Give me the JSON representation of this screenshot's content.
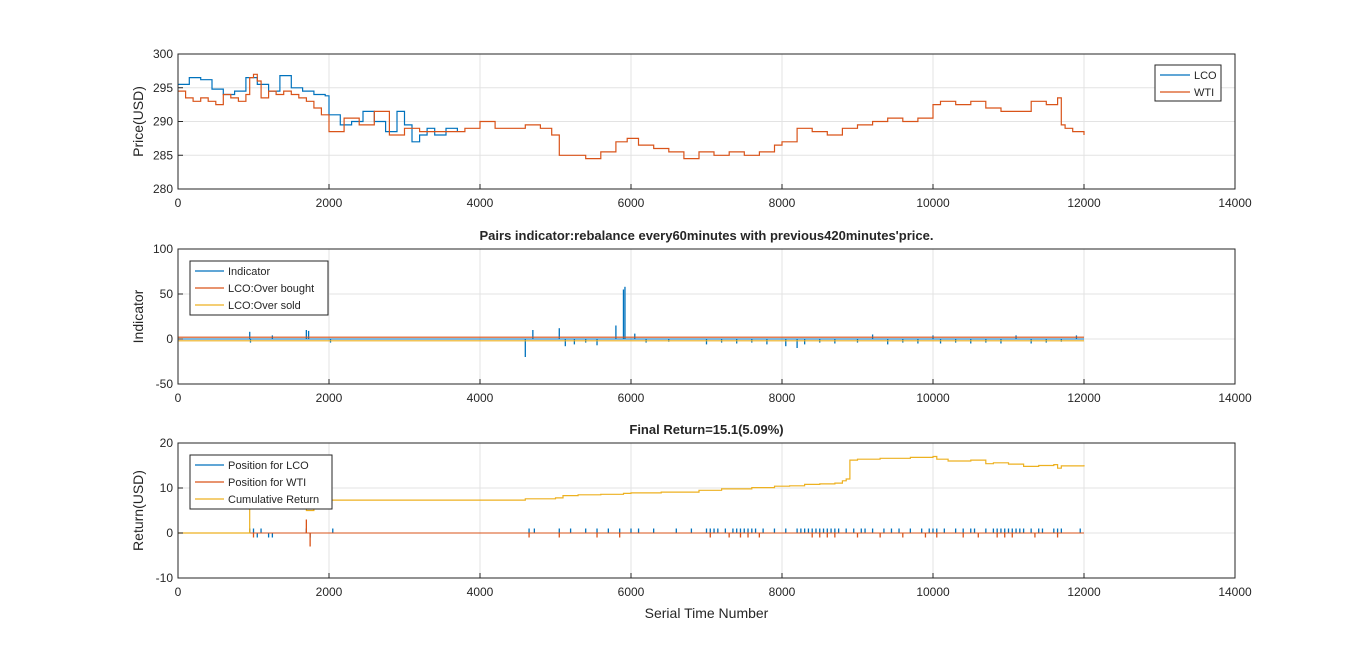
{
  "colors": {
    "c1": "#0072BD",
    "c2": "#D95319",
    "c3": "#EDB120",
    "grid": "#e3e3e3",
    "axis": "#262626"
  },
  "chart_data": [
    {
      "type": "line",
      "title": "",
      "ylabel": "Price(USD)",
      "xlabel": "",
      "xlim": [
        0,
        14000
      ],
      "ylim": [
        280,
        300
      ],
      "xticks": [
        "0",
        "2000",
        "4000",
        "6000",
        "8000",
        "10000",
        "12000",
        "14000"
      ],
      "yticks": [
        "280",
        "285",
        "290",
        "295",
        "300"
      ],
      "grid": true,
      "legend_position": "top-right",
      "series": [
        {
          "name": "LCO",
          "color": "#0072BD",
          "x": [
            0,
            150,
            300,
            450,
            600,
            750,
            900,
            1050,
            1200,
            1350,
            1500,
            1650,
            1800,
            1950,
            2000,
            2150,
            2300,
            2450,
            2600,
            2750,
            2900,
            3000,
            3100,
            3200,
            3300,
            3400,
            3550,
            3700
          ],
          "y": [
            295.5,
            296.5,
            296.2,
            294.8,
            294.0,
            294.5,
            296.5,
            295.5,
            294.5,
            296.8,
            295.0,
            294.5,
            294.0,
            293.8,
            291.0,
            289.5,
            290.0,
            291.5,
            290.0,
            288.5,
            291.5,
            289.5,
            287.0,
            288.0,
            289.0,
            288.0,
            289.0,
            288.5
          ]
        },
        {
          "name": "WTI",
          "color": "#D95319",
          "x": [
            0,
            100,
            200,
            300,
            400,
            500,
            600,
            700,
            800,
            900,
            950,
            1000,
            1050,
            1100,
            1200,
            1300,
            1400,
            1500,
            1600,
            1700,
            1800,
            1900,
            2000,
            2200,
            2400,
            2600,
            2800,
            3000,
            3200,
            3400,
            3600,
            3800,
            4000,
            4200,
            4400,
            4600,
            4800,
            4950,
            5050,
            5200,
            5400,
            5600,
            5800,
            5950,
            6100,
            6300,
            6500,
            6700,
            6900,
            7100,
            7300,
            7500,
            7700,
            7900,
            8000,
            8200,
            8400,
            8600,
            8800,
            9000,
            9200,
            9400,
            9600,
            9800,
            10000,
            10100,
            10300,
            10500,
            10700,
            10900,
            11100,
            11300,
            11500,
            11650,
            11700,
            11750,
            11850,
            12000
          ],
          "y": [
            294.5,
            293.5,
            293.0,
            293.5,
            293.0,
            292.5,
            294.0,
            293.5,
            293.0,
            294.0,
            296.5,
            297.0,
            296.0,
            293.5,
            294.5,
            294.0,
            294.5,
            294.0,
            293.5,
            293.0,
            292.0,
            291.0,
            288.5,
            290.5,
            289.5,
            291.5,
            288.0,
            289.0,
            288.5,
            288.5,
            288.5,
            289.0,
            290.0,
            289.0,
            289.0,
            289.5,
            289.0,
            288.0,
            285.0,
            285.0,
            284.5,
            285.5,
            287.0,
            287.5,
            286.5,
            286.0,
            285.5,
            284.5,
            285.5,
            285.0,
            285.5,
            285.0,
            285.5,
            286.5,
            287.0,
            289.0,
            288.5,
            288.0,
            289.0,
            289.5,
            290.0,
            290.5,
            290.0,
            290.5,
            292.5,
            293.0,
            292.5,
            293.0,
            292.0,
            291.5,
            291.5,
            293.0,
            292.5,
            293.5,
            289.5,
            289.0,
            288.5,
            288.0
          ]
        }
      ]
    },
    {
      "type": "line",
      "title": "Pairs indicator:rebalance every60minutes with previous420minutes'price.",
      "ylabel": "Indicator",
      "xlabel": "",
      "xlim": [
        0,
        14000
      ],
      "ylim": [
        -50,
        100
      ],
      "xticks": [
        "0",
        "2000",
        "4000",
        "6000",
        "8000",
        "10000",
        "12000",
        "14000"
      ],
      "yticks": [
        "-50",
        "0",
        "50",
        "100"
      ],
      "grid": true,
      "legend_position": "top-left",
      "series": [
        {
          "name": "Indicator",
          "color": "#0072BD",
          "spikes": [
            [
              950,
              8
            ],
            [
              960,
              -4
            ],
            [
              1250,
              4
            ],
            [
              1700,
              10
            ],
            [
              1730,
              9
            ],
            [
              2020,
              -4
            ],
            [
              4600,
              -20
            ],
            [
              4700,
              10
            ],
            [
              5050,
              12
            ],
            [
              5130,
              -8
            ],
            [
              5250,
              -6
            ],
            [
              5400,
              -4
            ],
            [
              5550,
              -7
            ],
            [
              5800,
              15
            ],
            [
              5900,
              55
            ],
            [
              5920,
              58
            ],
            [
              6050,
              6
            ],
            [
              6200,
              -4
            ],
            [
              6500,
              -3
            ],
            [
              7000,
              -6
            ],
            [
              7200,
              -4
            ],
            [
              7400,
              -5
            ],
            [
              7600,
              -4
            ],
            [
              7800,
              -6
            ],
            [
              8050,
              -8
            ],
            [
              8200,
              -10
            ],
            [
              8300,
              -6
            ],
            [
              8500,
              -4
            ],
            [
              8700,
              -5
            ],
            [
              9000,
              -4
            ],
            [
              9200,
              5
            ],
            [
              9400,
              -6
            ],
            [
              9600,
              -4
            ],
            [
              9800,
              -5
            ],
            [
              10000,
              4
            ],
            [
              10100,
              -5
            ],
            [
              10300,
              -4
            ],
            [
              10500,
              -5
            ],
            [
              10700,
              -4
            ],
            [
              10900,
              -5
            ],
            [
              11100,
              4
            ],
            [
              11300,
              -5
            ],
            [
              11500,
              -4
            ],
            [
              11700,
              -3
            ],
            [
              11900,
              4
            ]
          ]
        },
        {
          "name": "LCO:Over bought",
          "color": "#D95319",
          "y": 2
        },
        {
          "name": "LCO:Over sold",
          "color": "#EDB120",
          "y": -2
        }
      ]
    },
    {
      "type": "line",
      "title": "Final Return=15.1(5.09%)",
      "ylabel": "Return(USD)",
      "xlabel": "Serial Time Number",
      "xlim": [
        0,
        14000
      ],
      "ylim": [
        -10,
        20
      ],
      "xticks": [
        "0",
        "2000",
        "4000",
        "6000",
        "8000",
        "10000",
        "12000",
        "14000"
      ],
      "yticks": [
        "-10",
        "0",
        "10",
        "20"
      ],
      "grid": true,
      "legend_position": "top-left",
      "series": [
        {
          "name": "Position for LCO",
          "color": "#0072BD",
          "spikes": [
            [
              950,
              1
            ],
            [
              1000,
              1
            ],
            [
              1050,
              -1
            ],
            [
              1100,
              1
            ],
            [
              1200,
              -1
            ],
            [
              1250,
              -1
            ],
            [
              1700,
              1
            ],
            [
              1750,
              -1
            ],
            [
              2050,
              1
            ],
            [
              4650,
              1
            ],
            [
              4720,
              1
            ],
            [
              5050,
              1
            ],
            [
              5200,
              1
            ],
            [
              5400,
              1
            ],
            [
              5550,
              1
            ],
            [
              5700,
              1
            ],
            [
              5850,
              1
            ],
            [
              6000,
              1
            ],
            [
              6100,
              1
            ],
            [
              6300,
              1
            ],
            [
              6600,
              1
            ],
            [
              6800,
              1
            ],
            [
              7000,
              1
            ],
            [
              7050,
              1
            ],
            [
              7100,
              1
            ],
            [
              7150,
              1
            ],
            [
              7250,
              1
            ],
            [
              7350,
              1
            ],
            [
              7400,
              1
            ],
            [
              7450,
              1
            ],
            [
              7500,
              1
            ],
            [
              7550,
              1
            ],
            [
              7600,
              1
            ],
            [
              7650,
              1
            ],
            [
              7750,
              1
            ],
            [
              7900,
              1
            ],
            [
              8050,
              1
            ],
            [
              8200,
              1
            ],
            [
              8250,
              1
            ],
            [
              8300,
              1
            ],
            [
              8350,
              1
            ],
            [
              8400,
              1
            ],
            [
              8450,
              1
            ],
            [
              8500,
              1
            ],
            [
              8550,
              1
            ],
            [
              8600,
              1
            ],
            [
              8650,
              1
            ],
            [
              8700,
              1
            ],
            [
              8750,
              1
            ],
            [
              8850,
              1
            ],
            [
              8950,
              1
            ],
            [
              9050,
              1
            ],
            [
              9100,
              1
            ],
            [
              9200,
              1
            ],
            [
              9350,
              1
            ],
            [
              9450,
              1
            ],
            [
              9550,
              1
            ],
            [
              9700,
              1
            ],
            [
              9850,
              1
            ],
            [
              9950,
              1
            ],
            [
              10000,
              1
            ],
            [
              10050,
              1
            ],
            [
              10150,
              1
            ],
            [
              10300,
              1
            ],
            [
              10400,
              1
            ],
            [
              10500,
              1
            ],
            [
              10550,
              1
            ],
            [
              10700,
              1
            ],
            [
              10800,
              1
            ],
            [
              10850,
              1
            ],
            [
              10900,
              1
            ],
            [
              10950,
              1
            ],
            [
              11000,
              1
            ],
            [
              11050,
              1
            ],
            [
              11100,
              1
            ],
            [
              11150,
              1
            ],
            [
              11200,
              1
            ],
            [
              11300,
              1
            ],
            [
              11400,
              1
            ],
            [
              11450,
              1
            ],
            [
              11600,
              1
            ],
            [
              11650,
              1
            ],
            [
              11700,
              1
            ],
            [
              11950,
              1
            ]
          ]
        },
        {
          "name": "Position for WTI",
          "color": "#D95319",
          "spikes": [
            [
              1000,
              -1
            ],
            [
              1700,
              3
            ],
            [
              1750,
              -3
            ],
            [
              4650,
              -1
            ],
            [
              5050,
              -1
            ],
            [
              5550,
              -1
            ],
            [
              5850,
              -1
            ],
            [
              7050,
              -1
            ],
            [
              7300,
              -1
            ],
            [
              7450,
              -1
            ],
            [
              7550,
              -1
            ],
            [
              7700,
              -1
            ],
            [
              8400,
              -1
            ],
            [
              8500,
              -1
            ],
            [
              8600,
              -1
            ],
            [
              8700,
              -1
            ],
            [
              9000,
              -1
            ],
            [
              9300,
              -1
            ],
            [
              9600,
              -1
            ],
            [
              9900,
              -1
            ],
            [
              10050,
              -1
            ],
            [
              10400,
              -1
            ],
            [
              10600,
              -1
            ],
            [
              10850,
              -1
            ],
            [
              10950,
              -1
            ],
            [
              11050,
              -1
            ],
            [
              11350,
              -1
            ],
            [
              11650,
              -1
            ]
          ]
        },
        {
          "name": "Cumulative Return",
          "color": "#EDB120",
          "x": [
            0,
            930,
            950,
            1200,
            1700,
            1800,
            2000,
            4000,
            4600,
            5000,
            5100,
            5300,
            5600,
            5900,
            6000,
            6400,
            6900,
            7200,
            7600,
            7900,
            8100,
            8300,
            8500,
            8700,
            8800,
            8850,
            8900,
            9000,
            9300,
            9700,
            10000,
            10050,
            10200,
            10500,
            10700,
            10800,
            11000,
            11200,
            11400,
            11600,
            11650,
            11700,
            12000
          ],
          "y": [
            0,
            0,
            5.5,
            5.5,
            5.0,
            7.3,
            7.3,
            7.3,
            7.6,
            7.8,
            8.3,
            8.5,
            8.6,
            8.8,
            8.9,
            9.1,
            9.5,
            9.8,
            10.1,
            10.4,
            10.5,
            10.8,
            10.9,
            11.1,
            11.6,
            12.0,
            16.2,
            16.4,
            16.6,
            16.8,
            17.0,
            16.4,
            16.0,
            16.2,
            15.4,
            15.6,
            15.3,
            14.8,
            15.0,
            15.2,
            14.4,
            14.9,
            15.1
          ]
        }
      ]
    }
  ]
}
